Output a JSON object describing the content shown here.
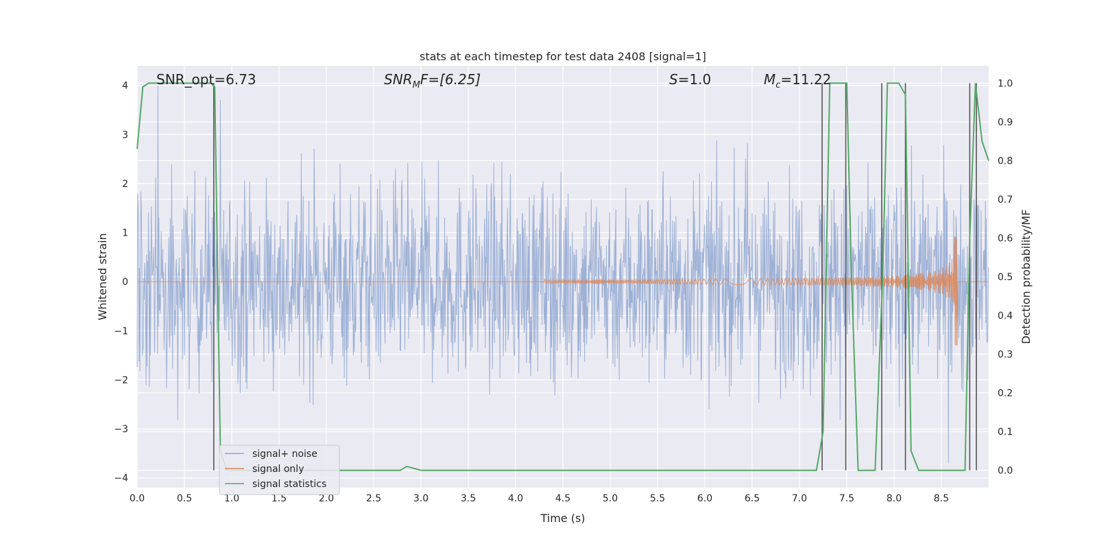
{
  "chart_data": {
    "type": "line",
    "title": "stats at each timestep for test data 2408 [signal=1]",
    "xlabel": "Time (s)",
    "ylabel": "Whitened strain",
    "y2label": "Detection probability/MF",
    "xlim": [
      0,
      9
    ],
    "ylim": [
      -4.2,
      4.4
    ],
    "y2lim": [
      -0.045,
      1.045
    ],
    "x_ticks": [
      "0.0",
      "0.5",
      "1.0",
      "1.5",
      "2.0",
      "2.5",
      "3.0",
      "3.5",
      "4.0",
      "4.5",
      "5.0",
      "5.5",
      "6.0",
      "6.5",
      "7.0",
      "7.5",
      "8.0",
      "8.5"
    ],
    "y_ticks": [
      "4",
      "3",
      "2",
      "1",
      "0",
      "−1",
      "−2",
      "−3",
      "−4"
    ],
    "y2_ticks": [
      "1.0",
      "0.9",
      "0.8",
      "0.7",
      "0.6",
      "0.5",
      "0.4",
      "0.3",
      "0.2",
      "0.1",
      "0.0"
    ],
    "grid": true,
    "legend_placement": "lower-left",
    "annotations": {
      "snr_opt": "SNR_opt=6.73",
      "snr_mf_main": "SNR",
      "snr_mf_sub": "M",
      "snr_mf_rest": "F=[6.25]",
      "s_main": "S",
      "s_rest": "=1.0",
      "mc_main": "M",
      "mc_sub": "c",
      "mc_rest": "=11.22"
    },
    "series": [
      {
        "name": "signal+ noise",
        "color": "#8fa6d0",
        "noise_envelope": {
          "typical_low": -2.0,
          "typical_high": 2.0,
          "max_high": 4.0,
          "max_low": -3.7
        }
      },
      {
        "name": "signal only",
        "color": "#dd8452",
        "chirp_peak": {
          "time": 8.67,
          "amplitude_high": 0.9,
          "amplitude_low": -1.3
        },
        "chirp_start_time": 4.3
      },
      {
        "name": "signal statistics",
        "color": "#55a868",
        "axis": "right",
        "x": [
          0.0,
          0.06,
          0.12,
          0.5,
          0.78,
          0.82,
          0.88,
          0.95,
          2.7,
          2.78,
          2.85,
          3.0,
          5.9,
          6.4,
          7.18,
          7.25,
          7.32,
          7.5,
          7.55,
          7.62,
          7.8,
          7.88,
          7.93,
          8.05,
          8.12,
          8.18,
          8.26,
          8.75,
          8.8,
          8.86,
          8.93,
          9.0
        ],
        "values": [
          0.83,
          0.99,
          1.0,
          1.0,
          1.0,
          0.99,
          0.05,
          0.0,
          0.0,
          0.0,
          0.01,
          0.0,
          0.0,
          0.0,
          0.0,
          0.1,
          1.0,
          1.0,
          0.5,
          0.0,
          0.0,
          0.5,
          1.0,
          1.0,
          0.97,
          0.05,
          0.0,
          0.0,
          0.6,
          1.0,
          0.85,
          0.8
        ]
      }
    ],
    "vertical_markers": [
      0.81,
      7.24,
      7.49,
      7.87,
      8.12,
      8.8,
      8.87
    ]
  }
}
